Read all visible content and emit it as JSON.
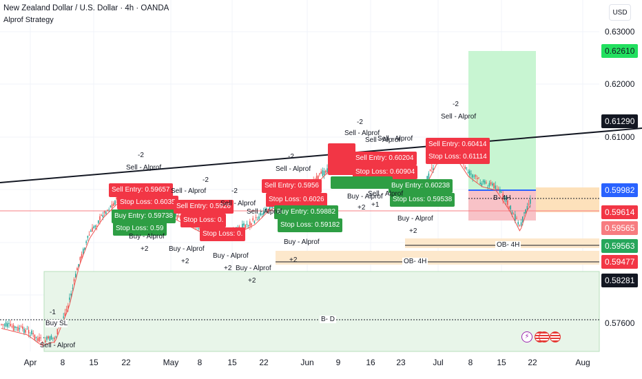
{
  "header": {
    "symbol_title": "New Zealand Dollar / U.S. Dollar · 4h · OANDA",
    "strategy_name": "Alprof Strategy",
    "currency_button": "USD"
  },
  "price_axis": {
    "ticks": [
      "0.63000",
      "0.62000",
      "0.61000",
      "0.57600"
    ],
    "tags": [
      {
        "value": "0.62610",
        "bg": "#22e05f",
        "fg": "#131722"
      },
      {
        "value": "0.61290",
        "bg": "#131722",
        "fg": "#ffffff"
      },
      {
        "value": "0.59982",
        "bg": "#2962ff",
        "fg": "#ffffff"
      },
      {
        "value": "0.59614",
        "bg": "#f23645",
        "fg": "#ffffff"
      },
      {
        "value": "0.59565",
        "bg": "#f77c80",
        "fg": "#ffffff"
      },
      {
        "value": "0.59563",
        "bg": "#26a65b",
        "fg": "#ffffff"
      },
      {
        "value": "0.59477",
        "bg": "#f23645",
        "fg": "#ffffff"
      },
      {
        "value": "0.58281",
        "bg": "#131722",
        "fg": "#ffffff"
      }
    ]
  },
  "time_axis": [
    "Apr",
    "8",
    "15",
    "22",
    "May",
    "8",
    "15",
    "22",
    "Jun",
    "9",
    "16",
    "23",
    "Jul",
    "8",
    "15",
    "22",
    "Aug"
  ],
  "zone_labels": {
    "ob_4h_upper": "OB- 4H",
    "ob_4h_lower": "OB- 4H",
    "b_d": "B- D",
    "b_4h": "B- 4H",
    "buy_sl": "Buy SL"
  },
  "signals": {
    "sell_entry_1": "Sell Entry: 0.59657",
    "stop_loss_1": "Stop Loss: 0.6035",
    "buy_entry_1": "Buy Entry: 0.59738",
    "stop_loss_2": "Stop Loss: 0.59",
    "sell_entry_2": "Sell Entry: 0.5926",
    "stop_loss_3": "Stop Loss: 0.",
    "sell_entry_3": "Sell Entry: 0.5956",
    "stop_loss_4": "Stop Loss: 0.6026",
    "buy_entry_2": "Buy Entry: 0.59882",
    "stop_loss_5": "Stop Loss: 0.59182",
    "sell_entry_4": "Sell Entry: 0.60204",
    "stop_loss_6": "Stop Loss: 0.60904",
    "buy_entry_3": "Buy Entry: 0.60238",
    "stop_loss_7": "Stop Loss: 0.59538",
    "sell_entry_5": "Sell Entry: 0.60414",
    "stop_loss_8": "Stop Loss: 0.61114",
    "sell_alprof": "Sell - Alprof",
    "buy_alprof": "Buy - Alprof",
    "minus_2": "-2",
    "plus_2": "+2",
    "plus_1": "+1",
    "minus_1": "-1"
  },
  "colors": {
    "bull": "#26a69a",
    "bear": "#ef5350",
    "sell_box": "#f23645",
    "buy_box": "#2e9e44",
    "zone_green": "#e3f2e6",
    "zone_orange": "#fde4c4",
    "target_green": "#c6f6d2",
    "stop_red": "#f7c0c4"
  },
  "icons": [
    "lightning-icon",
    "us-flag-icon",
    "us-flag-icon",
    "us-flag-icon"
  ]
}
